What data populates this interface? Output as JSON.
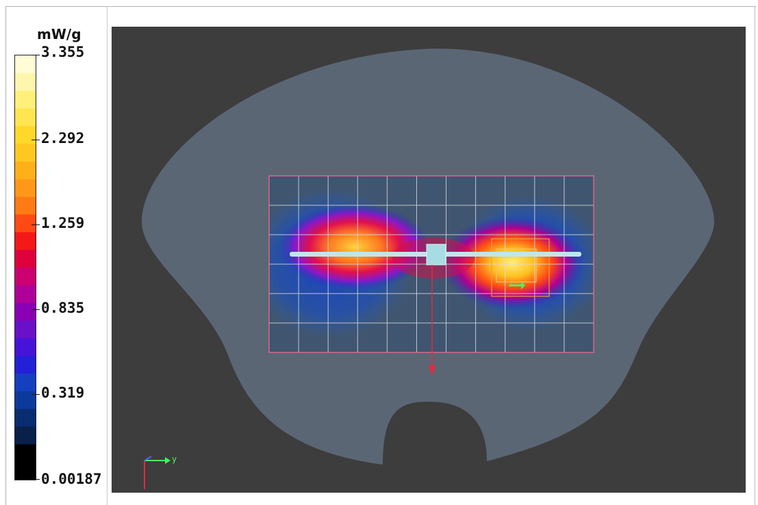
{
  "legend": {
    "unit": "mW/g",
    "ticks": [
      {
        "value": "3.355",
        "position": 0.0
      },
      {
        "value": "2.292",
        "position": 0.2
      },
      {
        "value": "1.259",
        "position": 0.4
      },
      {
        "value": "0.835",
        "position": 0.6
      },
      {
        "value": "0.319",
        "position": 0.8
      },
      {
        "value": "0.00187",
        "position": 1.0
      }
    ],
    "color_steps": [
      "#fffcd6",
      "#fff6ad",
      "#fff07a",
      "#ffe650",
      "#ffd82a",
      "#ffc820",
      "#ffb018",
      "#ff9818",
      "#ff7a14",
      "#ff4a14",
      "#f41818",
      "#e0003c",
      "#cc0070",
      "#b0009a",
      "#8c00b4",
      "#6a10c8",
      "#4614d8",
      "#2420d8",
      "#1440c0",
      "#0c3a9c",
      "#0a2c70",
      "#08204a",
      "#000000",
      "#000000"
    ]
  },
  "viewport": {
    "background": "#3d3d3d",
    "phantom_color": "#5b6675",
    "grid_color": "#d8dbe3",
    "frame_color": "#d6698a",
    "antenna_color": "#bfe6ea",
    "axis_x_label": "y"
  }
}
